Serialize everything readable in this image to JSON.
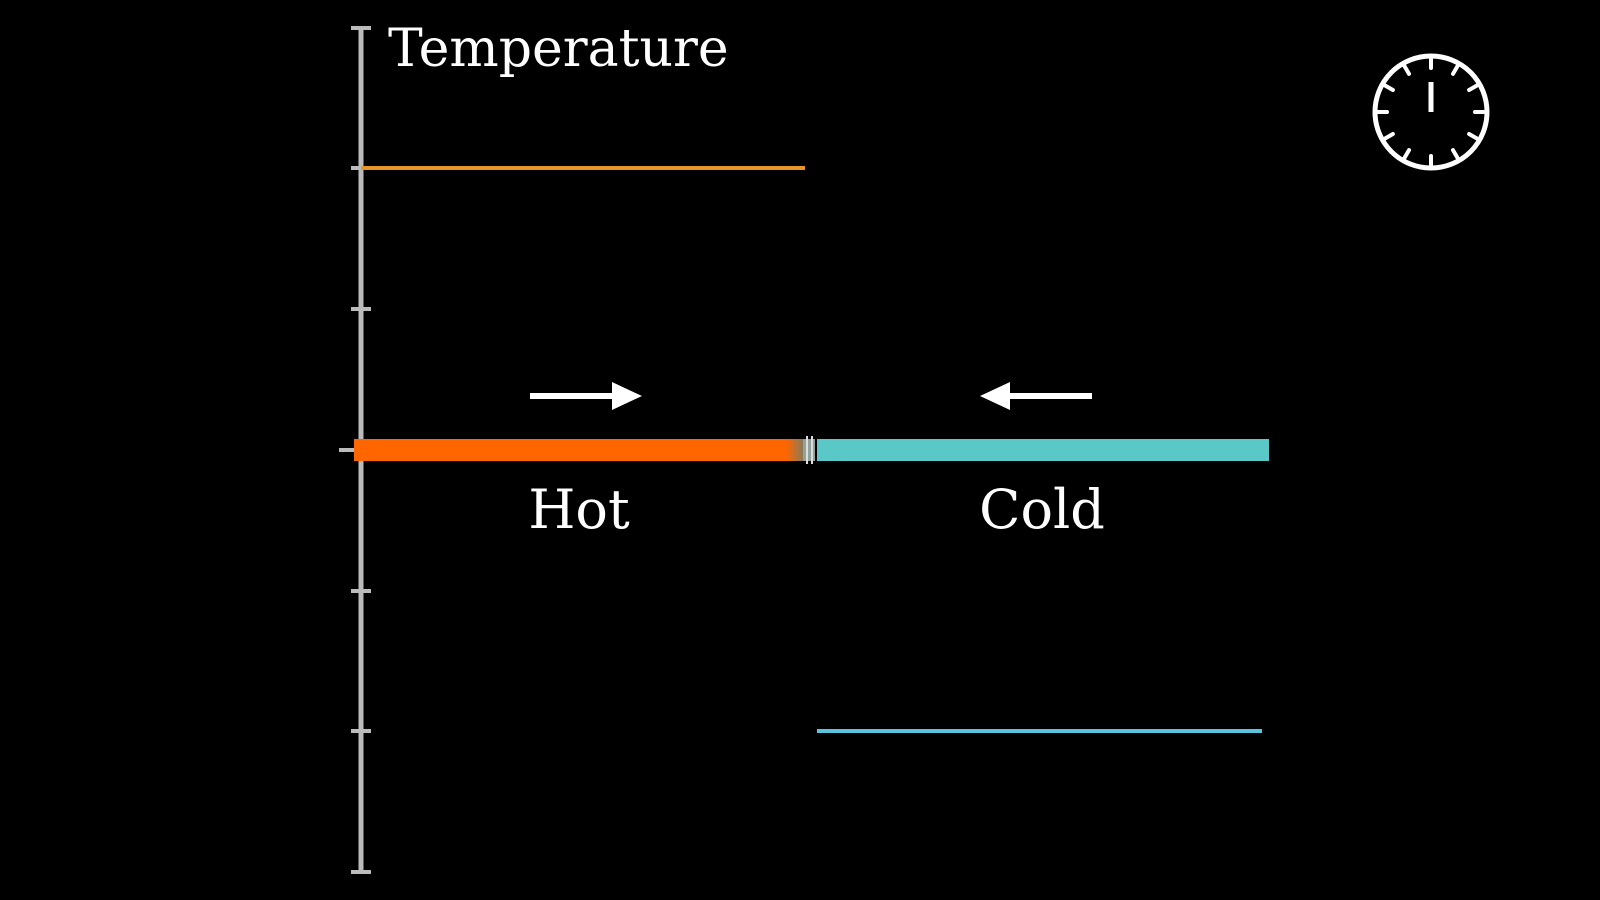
{
  "axis": {
    "label": "Temperature",
    "color": "#bbbbbb"
  },
  "rod": {
    "hot": {
      "label": "Hot",
      "color": "#ff6600"
    },
    "cold": {
      "label": "Cold",
      "color": "#5bc8c8"
    }
  },
  "levels": {
    "hot_line_color": "#e69526",
    "cold_line_color": "#58c4dd"
  },
  "icons": {
    "heat_flow_right": "arrow-right-icon",
    "heat_flow_left": "arrow-left-icon",
    "timer": "clock-icon"
  }
}
